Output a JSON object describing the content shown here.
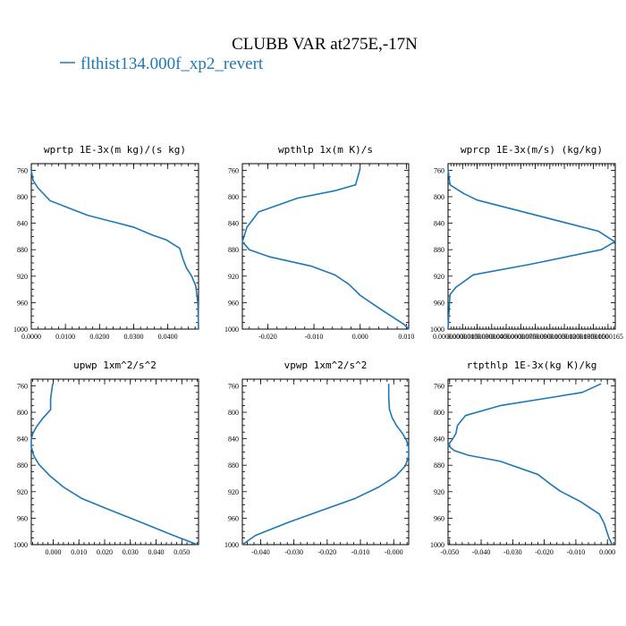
{
  "figure": {
    "title": "CLUBB VAR at275E,-17N",
    "legend": [
      {
        "name": "flthist134.000f_xp2_revert",
        "color": "#1f77b4"
      }
    ]
  },
  "chart_data": [
    {
      "type": "line",
      "title": "wprtp   1E-3x(m kg)/(s kg)",
      "xlim": [
        0.0,
        0.049
      ],
      "ylim": [
        1000,
        750
      ],
      "xticks": [
        0.0,
        0.01,
        0.02,
        0.03,
        0.04
      ],
      "xtick_labels": [
        "0.0000",
        "0.0100",
        "0.0200",
        "0.0300",
        "0.0400"
      ],
      "yticks": [
        760,
        800,
        840,
        880,
        920,
        960,
        1000
      ],
      "series": [
        {
          "color": "#1f77b4",
          "x": [
            0.0,
            0.0005,
            0.002,
            0.0055,
            0.011,
            0.0165,
            0.024,
            0.03,
            0.0355,
            0.0395,
            0.0435,
            0.0445,
            0.0455,
            0.047,
            0.0482,
            0.0488,
            0.049
          ],
          "y": [
            760,
            775,
            787,
            806,
            817,
            828,
            838,
            846,
            858,
            865,
            878,
            895,
            908,
            920,
            935,
            960,
            1000
          ]
        }
      ]
    },
    {
      "type": "line",
      "title": "wpthlp   1x(m K)/s",
      "xlim": [
        -0.0255,
        0.0105
      ],
      "ylim": [
        1000,
        750
      ],
      "xticks": [
        -0.02,
        -0.01,
        0.0,
        0.01
      ],
      "xtick_labels": [
        "-0.020",
        "-0.010",
        "0.000",
        "0.010"
      ],
      "yticks": [
        760,
        800,
        840,
        880,
        920,
        960,
        1000
      ],
      "series": [
        {
          "color": "#1f77b4",
          "x": [
            0.0,
            -0.0005,
            -0.001,
            -0.0055,
            -0.0135,
            -0.022,
            -0.0245,
            -0.0255,
            -0.024,
            -0.0195,
            -0.0105,
            -0.0055,
            -0.0025,
            0.0,
            0.004,
            0.0095,
            0.0105
          ],
          "y": [
            757,
            770,
            782,
            791,
            802,
            823,
            846,
            868,
            880,
            891,
            905,
            918,
            932,
            949,
            968,
            993,
            1000
          ]
        }
      ]
    },
    {
      "type": "line",
      "title": "wprcp   1E-3x(m/s) (kg/kg)",
      "xlim": [
        0.0,
        1.725e-05
      ],
      "ylim": [
        1000,
        750
      ],
      "xticks": [
        0.0,
        1.5e-06,
        3e-06,
        4.5e-06,
        6e-06,
        7.5e-06,
        9e-06,
        1.05e-05,
        1.2e-05,
        1.35e-05,
        1.5e-05,
        1.65e-05
      ],
      "xtick_labels": [
        "0.0000000",
        "0.0000015",
        "0.0000030",
        "0.0000045",
        "0.0000060",
        "0.0000075",
        "0.0000090",
        "0.0000105",
        "0.0000120",
        "0.0000135",
        "0.0000150",
        "0.0000165"
      ],
      "yticks": [
        760,
        800,
        840,
        880,
        920,
        960,
        1000
      ],
      "series": [
        {
          "color": "#1f77b4",
          "x": [
            0.0,
            2e-07,
            1.6e-06,
            3e-06,
            1.55e-05,
            1.72e-05,
            1.58e-05,
            8.5e-06,
            2.6e-06,
            8e-07,
            2e-07,
            0.0
          ],
          "y": [
            758,
            782,
            795,
            805,
            852,
            868,
            880,
            902,
            918,
            937,
            948,
            1000
          ]
        }
      ]
    },
    {
      "type": "line",
      "title": "upwp   1xm^2/s^2",
      "xlim": [
        -0.0085,
        0.0565
      ],
      "ylim": [
        1000,
        750
      ],
      "xticks": [
        0.0,
        0.01,
        0.02,
        0.03,
        0.04,
        0.05
      ],
      "xtick_labels": [
        "0.000",
        "0.010",
        "0.020",
        "0.030",
        "0.040",
        "0.050"
      ],
      "yticks": [
        760,
        800,
        840,
        880,
        920,
        960,
        1000
      ],
      "series": [
        {
          "color": "#1f77b4",
          "x": [
            -0.0002,
            -0.001,
            -0.001,
            -0.004,
            -0.0065,
            -0.008,
            -0.0085,
            -0.0085,
            -0.0075,
            -0.0055,
            -0.001,
            0.004,
            0.011,
            0.021,
            0.034,
            0.046,
            0.056
          ],
          "y": [
            757,
            780,
            796,
            809,
            822,
            833,
            841,
            852,
            866,
            879,
            897,
            913,
            930,
            946,
            966,
            985,
            1000
          ]
        }
      ]
    },
    {
      "type": "line",
      "title": "vpwp   1xm^2/s^2",
      "xlim": [
        -0.0455,
        0.0045
      ],
      "ylim": [
        1000,
        750
      ],
      "xticks": [
        -0.04,
        -0.03,
        -0.02,
        -0.01,
        0.0
      ],
      "xtick_labels": [
        "-0.040",
        "-0.030",
        "-0.020",
        "-0.010",
        "-0.000"
      ],
      "yticks": [
        760,
        800,
        840,
        880,
        920,
        960,
        1000
      ],
      "series": [
        {
          "color": "#1f77b4",
          "x": [
            -0.0015,
            -0.0015,
            -0.0013,
            -0.0005,
            0.0008,
            0.0025,
            0.0038,
            0.0045,
            0.0045,
            0.0035,
            0.0005,
            -0.0045,
            -0.0115,
            -0.0215,
            -0.0315,
            -0.0415,
            -0.0455
          ],
          "y": [
            757,
            778,
            795,
            808,
            820,
            831,
            842,
            853,
            866,
            881,
            897,
            913,
            930,
            948,
            966,
            986,
            1000
          ]
        }
      ]
    },
    {
      "type": "line",
      "title": "rtpthlp   1E-3x(kg K)/kg",
      "xlim": [
        -0.0505,
        0.0025
      ],
      "ylim": [
        1000,
        750
      ],
      "xticks": [
        -0.05,
        -0.04,
        -0.03,
        -0.02,
        -0.01,
        0.0
      ],
      "xtick_labels": [
        "-0.050",
        "-0.040",
        "-0.030",
        "-0.020",
        "-0.010",
        "0.000"
      ],
      "yticks": [
        760,
        800,
        840,
        880,
        920,
        960,
        1000
      ],
      "series": [
        {
          "color": "#1f77b4",
          "x": [
            -0.002,
            -0.008,
            -0.017,
            -0.034,
            -0.045,
            -0.0475,
            -0.048,
            -0.049,
            -0.0505,
            -0.0485,
            -0.044,
            -0.034,
            -0.022,
            -0.0185,
            -0.015,
            -0.0085,
            -0.0025,
            -0.001,
            0.0005,
            0.0015
          ],
          "y": [
            757,
            770,
            777,
            790,
            805,
            820,
            832,
            840,
            850,
            858,
            865,
            874,
            894,
            907,
            919,
            935,
            954,
            968,
            990,
            1000
          ]
        }
      ]
    }
  ]
}
